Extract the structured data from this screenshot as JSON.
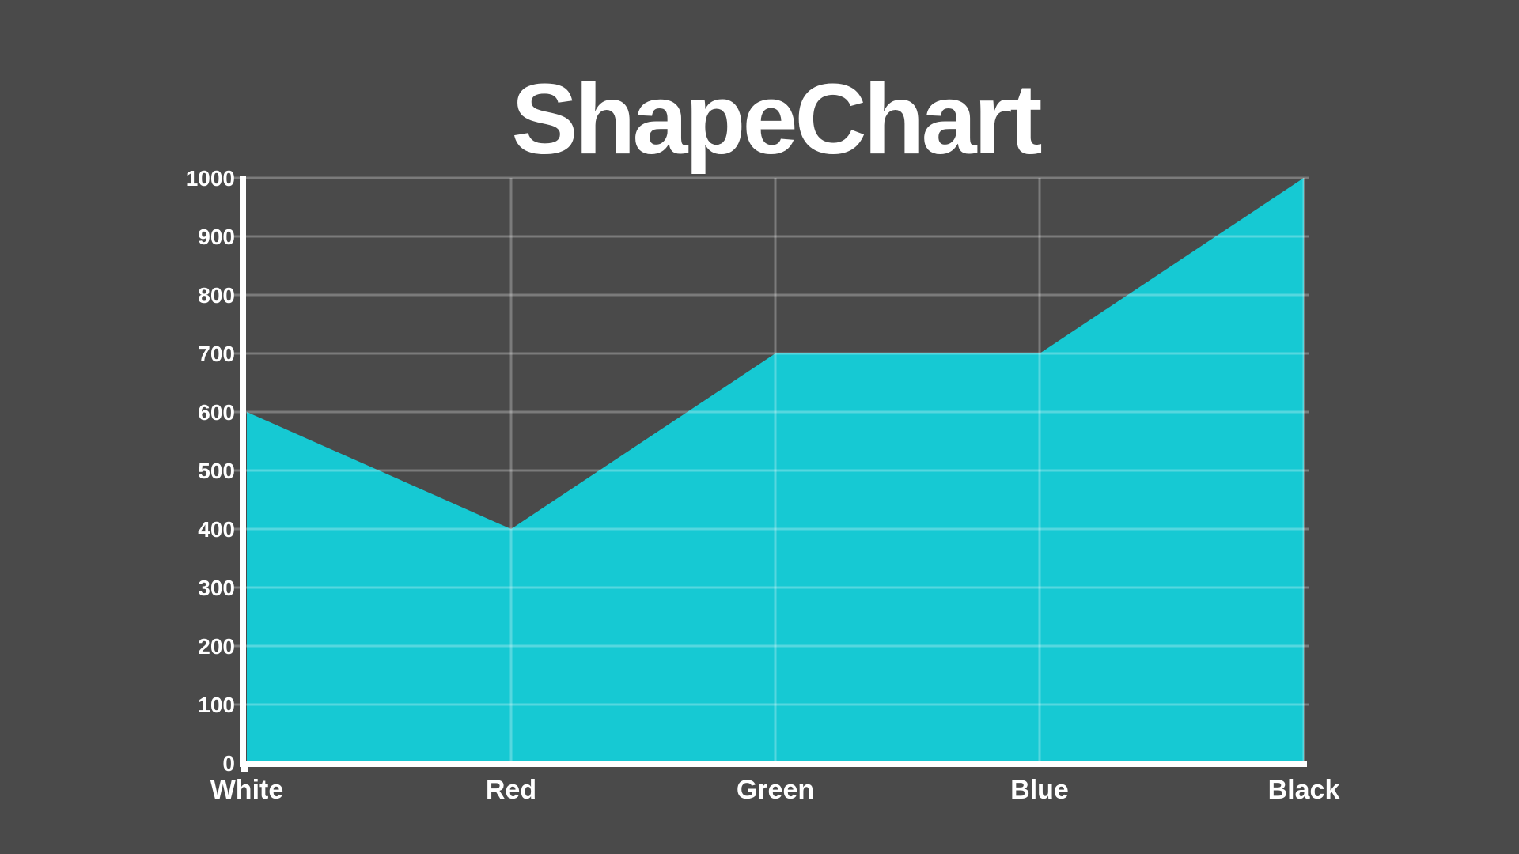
{
  "page": {
    "background_color": "#4a4a4a"
  },
  "chart_data": {
    "type": "area",
    "title": "ShapeChart",
    "categories": [
      "White",
      "Red",
      "Green",
      "Blue",
      "Black"
    ],
    "values": [
      600,
      400,
      700,
      700,
      1000
    ],
    "series": [
      {
        "name": "ShapeChart",
        "values": [
          600,
          400,
          700,
          700,
          1000
        ]
      }
    ],
    "xlabel": "",
    "ylabel": "",
    "ylim": [
      0,
      1000
    ],
    "ytick_step": 100,
    "ytick_labels": [
      "0",
      "100",
      "200",
      "300",
      "400",
      "500",
      "600",
      "700",
      "800",
      "900",
      "1000"
    ],
    "grid": true,
    "legend": false,
    "colors": {
      "background": "#4a4a4a",
      "area": "#16c9d3",
      "gridline": "rgba(255,255,255,0.27)",
      "axis": "#ffffff",
      "text": "#ffffff"
    }
  }
}
